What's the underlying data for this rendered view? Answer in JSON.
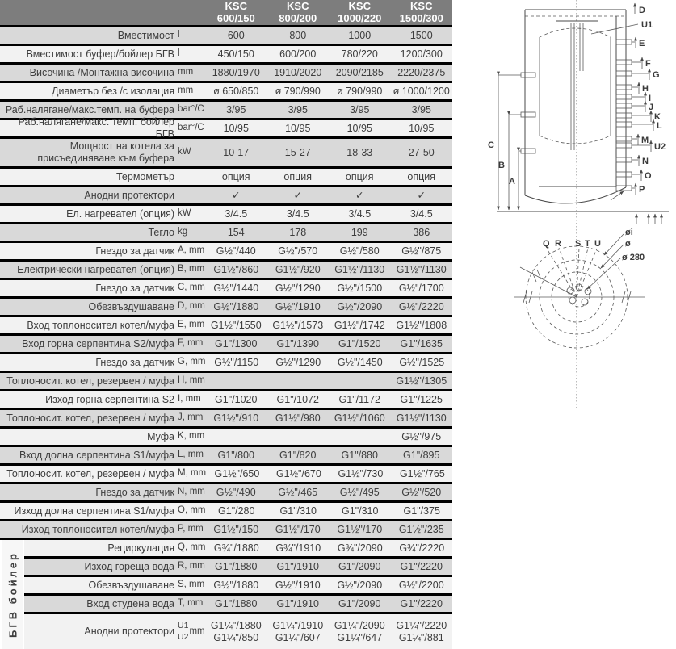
{
  "header": {
    "models": [
      {
        "brand": "KSC",
        "size": "600/150"
      },
      {
        "brand": "KSC",
        "size": "800/200"
      },
      {
        "brand": "KSC",
        "size": "1000/220"
      },
      {
        "brand": "KSC",
        "size": "1500/300"
      }
    ]
  },
  "table": {
    "group_label": "БГВ бойлер",
    "rows": [
      {
        "label": "Вместимост",
        "unit": "l",
        "values": [
          "600",
          "800",
          "1000",
          "1500"
        ]
      },
      {
        "label": "Вместимост буфер/бойлер БГВ",
        "unit": "l",
        "values": [
          "450/150",
          "600/200",
          "780/220",
          "1200/300"
        ]
      },
      {
        "label": "Височина /Монтажна височина",
        "unit": "mm",
        "values": [
          "1880/1970",
          "1910/2020",
          "2090/2185",
          "2220/2375"
        ]
      },
      {
        "label": "Диаметър без /с изолация",
        "unit": "mm",
        "values": [
          "ø 650/850",
          "ø 790/990",
          "ø 790/990",
          "ø 1000/1200"
        ]
      },
      {
        "label": "Раб.налягане/макс.темп. на буфера",
        "unit": "bar°/C",
        "values": [
          "3/95",
          "3/95",
          "3/95",
          "3/95"
        ]
      },
      {
        "label": "Раб.налягане/макс. темп. бойлер БГВ",
        "unit": "bar°/C",
        "values": [
          "10/95",
          "10/95",
          "10/95",
          "10/95"
        ]
      },
      {
        "label": "Мощност на котела за\nприсъединяване към буфера",
        "unit": "kW",
        "values": [
          "10-17",
          "15-27",
          "18-33",
          "27-50"
        ]
      },
      {
        "label": "Термометър",
        "unit": "",
        "values": [
          "опция",
          "опция",
          "опция",
          "опция"
        ]
      },
      {
        "label": "Анодни протектори",
        "unit": "",
        "values": [
          "✓",
          "✓",
          "✓",
          "✓"
        ]
      },
      {
        "label": "Ел. нагревател (опция)",
        "unit": "kW",
        "values": [
          "3/4.5",
          "3/4.5",
          "3/4.5",
          "3/4.5"
        ]
      },
      {
        "label": "Тегло",
        "unit": "kg",
        "values": [
          "154",
          "178",
          "199",
          "386"
        ]
      },
      {
        "label": "Гнездо за датчик",
        "unit": "A, mm",
        "values": [
          "G½\"/440",
          "G½\"/570",
          "G½\"/580",
          "G½\"/875"
        ]
      },
      {
        "label": "Електрически нагревател (опция)",
        "unit": "B, mm",
        "values": [
          "G1½\"/860",
          "G1½\"/920",
          "G1½\"/1130",
          "G1½\"/1130"
        ]
      },
      {
        "label": "Гнездо за датчик",
        "unit": "C, mm",
        "values": [
          "G½\"/1440",
          "G½\"/1290",
          "G½\"/1500",
          "G½\"/1700"
        ]
      },
      {
        "label": "Обезвъздушаване",
        "unit": "D, mm",
        "values": [
          "G½\"/1880",
          "G½\"/1910",
          "G½\"/2090",
          "G½\"/2220"
        ]
      },
      {
        "label": "Вход топлоносител котел/муфа",
        "unit": "E, mm",
        "values": [
          "G1½\"/1550",
          "G1½\"/1573",
          "G1½\"/1742",
          "G1½\"/1808"
        ]
      },
      {
        "label": "Вход горна серпентина S2/муфа",
        "unit": "F, mm",
        "values": [
          "G1\"/1300",
          "G1\"/1390",
          "G1\"/1520",
          "G1\"/1635"
        ]
      },
      {
        "label": "Гнездо за датчик",
        "unit": "G, mm",
        "values": [
          "G½\"/1150",
          "G½\"/1290",
          "G½\"/1450",
          "G½\"/1525"
        ]
      },
      {
        "label": "Топлоносит. котел, резервен / муфа",
        "unit": "H, mm",
        "values": [
          "",
          "",
          "",
          "G1½\"/1305"
        ]
      },
      {
        "label": "Изход горна серпентина S2",
        "unit": "I, mm",
        "values": [
          "G1\"/1020",
          "G1\"/1072",
          "G1\"/1172",
          "G1\"/1225"
        ]
      },
      {
        "label": "Топлоносит. котел, резервен / муфа",
        "unit": "J, mm",
        "values": [
          "G1½\"/910",
          "G1½\"/980",
          "G1½\"/1060",
          "G1½\"/1130"
        ]
      },
      {
        "label": "Муфа",
        "unit": "K, mm",
        "values": [
          "",
          "",
          "",
          "G½\"/975"
        ]
      },
      {
        "label": "Вход долна серпентина S1/муфа",
        "unit": "L, mm",
        "values": [
          "G1\"/800",
          "G1\"/820",
          "G1\"/880",
          "G1\"/895"
        ]
      },
      {
        "label": "Топлоносит. котел, резервен / муфа",
        "unit": "M, mm",
        "values": [
          "G1½\"/650",
          "G1½\"/670",
          "G1½\"/730",
          "G1½\"/765"
        ]
      },
      {
        "label": "Гнездо за датчик",
        "unit": "N, mm",
        "values": [
          "G½\"/490",
          "G½\"/465",
          "G½\"/495",
          "G½\"/520"
        ]
      },
      {
        "label": "Изход долна серпентина S1/муфа",
        "unit": "O, mm",
        "values": [
          "G1\"/280",
          "G1\"/310",
          "G1\"/310",
          "G1\"/375"
        ]
      },
      {
        "label": "Изход топлоносител котел/муфа",
        "unit": "P, mm",
        "values": [
          "G1½\"/150",
          "G1½\"/170",
          "G1½\"/170",
          "G1½\"/235"
        ]
      },
      {
        "label": "Рециркулация",
        "unit": "Q, mm",
        "group": true,
        "values": [
          "G¾\"/1880",
          "G¾\"/1910",
          "G¾\"/2090",
          "G¾\"/2220"
        ]
      },
      {
        "label": "Изход гореща вода",
        "unit": "R, mm",
        "group": true,
        "values": [
          "G1\"/1880",
          "G1\"/1910",
          "G1\"/2090",
          "G1\"/2220"
        ]
      },
      {
        "label": "Обезвъздушаване",
        "unit": "S, mm",
        "group": true,
        "values": [
          "G½\"/1880",
          "G½\"/1910",
          "G½\"/2090",
          "G½\"/2200"
        ]
      },
      {
        "label": "Вход студена вода",
        "unit": "T, mm",
        "group": true,
        "values": [
          "G1\"/1880",
          "G1\"/1910",
          "G1\"/2090",
          "G1\"/2220"
        ]
      },
      {
        "label": "Анодни протектори",
        "unit": "mm",
        "unit_stack": [
          "U1",
          "U2"
        ],
        "group": true,
        "values": [
          "G1¼\"/1880\nG1¼\"/850",
          "G1¼\"/1910\nG1¼\"/607",
          "G1¼\"/2090\nG1¼\"/647",
          "G1¼\"/2220\nG1¼\"/881"
        ]
      }
    ]
  },
  "diagram": {
    "labels": {
      "D": "D",
      "U1": "U1",
      "E": "E",
      "F": "F",
      "G": "G",
      "H": "H",
      "I": "I",
      "J": "J",
      "K": "K",
      "L": "L",
      "M": "M",
      "U2": "U2",
      "N": "N",
      "O": "O",
      "P": "P",
      "A": "A",
      "B": "B",
      "C": "C",
      "Q": "Q",
      "R": "R",
      "S": "S",
      "T": "T",
      "U": "U",
      "dia_ins": "øi",
      "dia": "ø",
      "dia280": "ø 280"
    }
  }
}
